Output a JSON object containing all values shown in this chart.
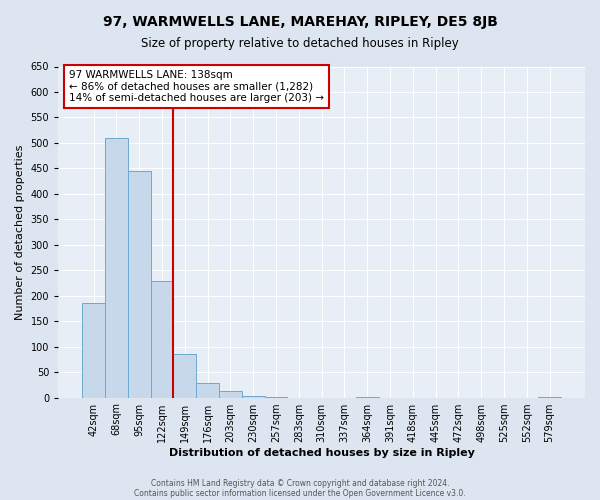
{
  "title": "97, WARMWELLS LANE, MAREHAY, RIPLEY, DE5 8JB",
  "subtitle": "Size of property relative to detached houses in Ripley",
  "xlabel": "Distribution of detached houses by size in Ripley",
  "ylabel": "Number of detached properties",
  "categories": [
    "42sqm",
    "68sqm",
    "95sqm",
    "122sqm",
    "149sqm",
    "176sqm",
    "203sqm",
    "230sqm",
    "257sqm",
    "283sqm",
    "310sqm",
    "337sqm",
    "364sqm",
    "391sqm",
    "418sqm",
    "445sqm",
    "472sqm",
    "498sqm",
    "525sqm",
    "552sqm",
    "579sqm"
  ],
  "values": [
    185,
    510,
    445,
    228,
    85,
    29,
    13,
    4,
    1,
    0,
    0,
    0,
    1,
    0,
    0,
    0,
    0,
    0,
    0,
    0,
    1
  ],
  "bar_color": "#c8d8eb",
  "bar_edge_color": "#6aaad4",
  "annotation_title": "97 WARMWELLS LANE: 138sqm",
  "annotation_line1": "← 86% of detached houses are smaller (1,282)",
  "annotation_line2": "14% of semi-detached houses are larger (203) →",
  "annotation_box_facecolor": "white",
  "annotation_box_edgecolor": "#cc0000",
  "property_line_color": "#cc0000",
  "property_line_x": 3.5,
  "ylim": [
    0,
    650
  ],
  "yticks": [
    0,
    50,
    100,
    150,
    200,
    250,
    300,
    350,
    400,
    450,
    500,
    550,
    600,
    650
  ],
  "figure_facecolor": "#dde6f0",
  "axes_facecolor": "#e8eef5",
  "grid_color": "#ffffff",
  "title_fontsize": 10,
  "subtitle_fontsize": 8.5,
  "xlabel_fontsize": 8,
  "ylabel_fontsize": 8,
  "tick_fontsize": 7,
  "annotation_fontsize": 7.5,
  "footer_line1": "Contains HM Land Registry data © Crown copyright and database right 2024.",
  "footer_line2": "Contains public sector information licensed under the Open Government Licence v3.0.",
  "footer_fontsize": 5.5,
  "footer_color": "#555555"
}
